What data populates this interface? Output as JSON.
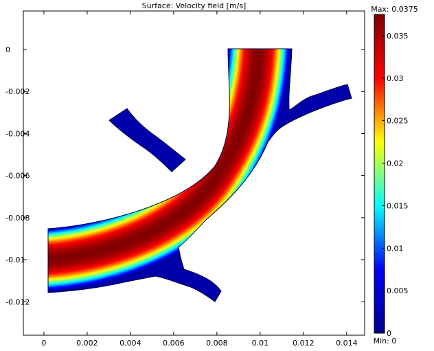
{
  "chart_data": {
    "type": "heatmap",
    "title": "Surface: Velocity field [m/s]",
    "xlabel": "",
    "ylabel": "",
    "x_ticks": [
      0,
      0.002,
      0.004,
      0.006,
      0.008,
      0.01,
      0.012,
      0.014
    ],
    "x_tick_labels": [
      "0",
      "0.002",
      "0.004",
      "0.006",
      "0.008",
      "0.01",
      "0.012",
      "0.014"
    ],
    "y_ticks": [
      0,
      -0.002,
      -0.004,
      -0.006,
      -0.008,
      -0.01,
      -0.012
    ],
    "y_tick_labels": [
      "0",
      "-0.002",
      "-0.004",
      "-0.006",
      "-0.008",
      "-0.01",
      "-0.012"
    ],
    "xlim": [
      -0.00095,
      0.01483
    ],
    "ylim": [
      -0.01359,
      0.00183
    ],
    "grid": false,
    "colormap": "jet",
    "colors": [
      "#00008f",
      "#0000ff",
      "#00ffff",
      "#ffff00",
      "#ff0000",
      "#800000"
    ],
    "colorbar": {
      "min": 0,
      "max": 0.0375,
      "max_label": "Max: 0.0375",
      "min_label": "Min: 0",
      "ticks": [
        0,
        0.005,
        0.01,
        0.015,
        0.02,
        0.025,
        0.03,
        0.035
      ],
      "tick_labels": [
        "0",
        "0.005",
        "0.01",
        "0.015",
        "0.02",
        "0.025",
        "0.03",
        "0.035"
      ]
    },
    "geometry": {
      "main_vessel": {
        "inlet": {
          "x": 0,
          "y_min": -0.0115,
          "y_max": -0.0085
        },
        "outlet": {
          "y": 0,
          "x_min": 0.0086,
          "x_max": 0.0116
        }
      },
      "upper_left_branch_tip": {
        "x": 0.003,
        "y": -0.0033
      },
      "upper_right_branch_tip": {
        "x": 0.0143,
        "y": -0.0021
      },
      "lower_branch_tip": {
        "x": 0.0081,
        "y": -0.0116
      },
      "peak_velocity": 0.0375
    }
  }
}
